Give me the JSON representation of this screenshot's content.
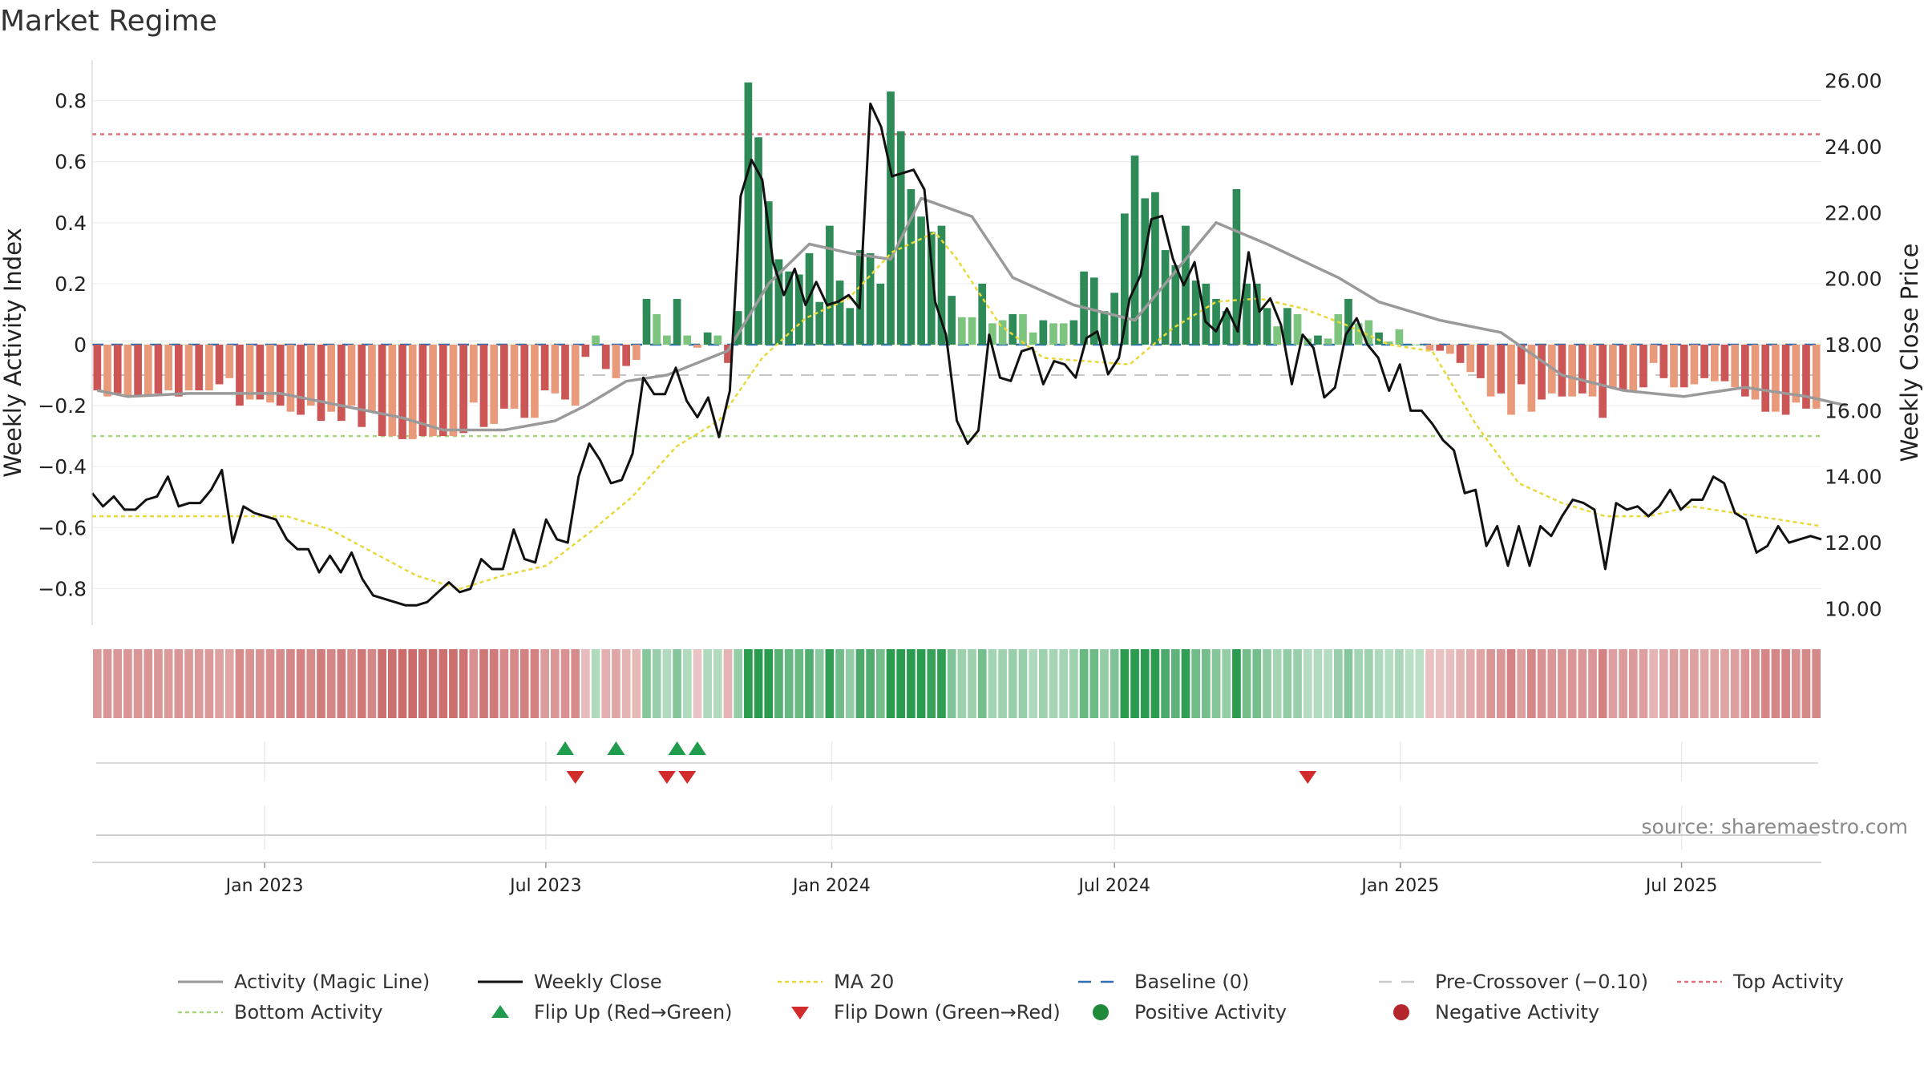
{
  "chart_data": {
    "type": "bar",
    "title": "Market Regime",
    "ylabel_left": "Weekly Activity Index",
    "ylabel_right": "Weekly Close Price",
    "source": "source: sharemaestro.com",
    "x_range": [
      "2022-09-12",
      "2025-09-29"
    ],
    "ylim_left": [
      -0.92,
      0.92
    ],
    "ylim_right": [
      9.5,
      26.5
    ],
    "yticks_left": [
      {
        "v": 0.8,
        "label": "0.8"
      },
      {
        "v": 0.6,
        "label": "0.6"
      },
      {
        "v": 0.4,
        "label": "0.4"
      },
      {
        "v": 0.2,
        "label": "0.2"
      },
      {
        "v": 0,
        "label": "0"
      },
      {
        "v": -0.2,
        "label": "−0.2"
      },
      {
        "v": -0.4,
        "label": "−0.4"
      },
      {
        "v": -0.6,
        "label": "−0.6"
      },
      {
        "v": -0.8,
        "label": "−0.8"
      }
    ],
    "yticks_right": [
      {
        "v": 26,
        "label": "26.00"
      },
      {
        "v": 24,
        "label": "24.00"
      },
      {
        "v": 22,
        "label": "22.00"
      },
      {
        "v": 20,
        "label": "20.00"
      },
      {
        "v": 18,
        "label": "18.00"
      },
      {
        "v": 16,
        "label": "16.00"
      },
      {
        "v": 14,
        "label": "14.00"
      },
      {
        "v": 12,
        "label": "12.00"
      },
      {
        "v": 10,
        "label": "10.00"
      }
    ],
    "xticks": [
      {
        "date": "2023-01-01",
        "label": "Jan 2023"
      },
      {
        "date": "2023-07-01",
        "label": "Jul 2023"
      },
      {
        "date": "2024-01-01",
        "label": "Jan 2024"
      },
      {
        "date": "2024-07-01",
        "label": "Jul 2024"
      },
      {
        "date": "2025-01-01",
        "label": "Jan 2025"
      },
      {
        "date": "2025-07-01",
        "label": "Jul 2025"
      }
    ],
    "reference_lines": {
      "top_activity": 0.69,
      "bottom_activity": -0.3,
      "pre_crossover": -0.1,
      "baseline": 0
    },
    "activity_bars": [
      -0.15,
      -0.17,
      -0.16,
      -0.17,
      -0.17,
      -0.17,
      -0.16,
      -0.15,
      -0.17,
      -0.15,
      -0.15,
      -0.15,
      -0.13,
      -0.11,
      -0.2,
      -0.18,
      -0.18,
      -0.19,
      -0.2,
      -0.22,
      -0.23,
      -0.2,
      -0.25,
      -0.22,
      -0.25,
      -0.2,
      -0.27,
      -0.22,
      -0.3,
      -0.3,
      -0.31,
      -0.31,
      -0.3,
      -0.3,
      -0.3,
      -0.3,
      -0.29,
      -0.19,
      -0.27,
      -0.26,
      -0.21,
      -0.21,
      -0.24,
      -0.24,
      -0.15,
      -0.16,
      -0.18,
      -0.2,
      -0.04,
      0.03,
      -0.08,
      -0.11,
      -0.07,
      -0.05,
      0.15,
      0.1,
      0.03,
      0.15,
      0.03,
      -0.01,
      0.04,
      0.03,
      -0.06,
      0.11,
      0.86,
      0.68,
      0.47,
      0.28,
      0.24,
      0.23,
      0.3,
      0.14,
      0.39,
      0.21,
      0.12,
      0.31,
      0.3,
      0.2,
      0.83,
      0.7,
      0.51,
      0.42,
      0.37,
      0.39,
      0.16,
      0.09,
      0.09,
      0.2,
      0.07,
      0.08,
      0.1,
      0.1,
      0.04,
      0.08,
      0.07,
      0.07,
      0.08,
      0.24,
      0.22,
      0.11,
      0.17,
      0.43,
      0.62,
      0.48,
      0.5,
      0.31,
      0.26,
      0.39,
      0.21,
      0.2,
      0.15,
      0.11,
      0.51,
      0.2,
      0.2,
      0.12,
      0.06,
      0.12,
      0.1,
      0.02,
      0.03,
      0.02,
      0.1,
      0.15,
      0.07,
      0.08,
      0.04,
      0.01,
      0.05,
      0.0,
      0.0,
      -0.02,
      -0.02,
      -0.03,
      -0.06,
      -0.09,
      -0.11,
      -0.17,
      -0.16,
      -0.23,
      -0.13,
      -0.22,
      -0.18,
      -0.16,
      -0.17,
      -0.17,
      -0.16,
      -0.17,
      -0.24,
      -0.14,
      -0.15,
      -0.15,
      -0.14,
      -0.06,
      -0.11,
      -0.14,
      -0.14,
      -0.13,
      -0.11,
      -0.12,
      -0.12,
      -0.14,
      -0.17,
      -0.18,
      -0.22,
      -0.22,
      -0.23,
      -0.19,
      -0.21,
      -0.21
    ],
    "magic_line": [
      [
        0,
        -0.15
      ],
      [
        3,
        -0.17
      ],
      [
        9,
        -0.16
      ],
      [
        18,
        -0.16
      ],
      [
        24,
        -0.2
      ],
      [
        30,
        -0.24
      ],
      [
        34,
        -0.28
      ],
      [
        40,
        -0.28
      ],
      [
        45,
        -0.25
      ],
      [
        48,
        -0.2
      ],
      [
        52,
        -0.12
      ],
      [
        56,
        -0.1
      ],
      [
        62,
        -0.02
      ],
      [
        66,
        0.2
      ],
      [
        70,
        0.33
      ],
      [
        74,
        0.3
      ],
      [
        78,
        0.28
      ],
      [
        81,
        0.48
      ],
      [
        86,
        0.42
      ],
      [
        90,
        0.22
      ],
      [
        96,
        0.13
      ],
      [
        102,
        0.08
      ],
      [
        105,
        0.2
      ],
      [
        110,
        0.4
      ],
      [
        115,
        0.33
      ],
      [
        122,
        0.22
      ],
      [
        126,
        0.14
      ],
      [
        132,
        0.08
      ],
      [
        138,
        0.04
      ],
      [
        144,
        -0.1
      ],
      [
        150,
        -0.15
      ],
      [
        156,
        -0.17
      ],
      [
        162,
        -0.14
      ],
      [
        168,
        -0.17
      ],
      [
        172,
        -0.2
      ]
    ],
    "weekly_close": [
      [
        0,
        13.5
      ],
      [
        1,
        13.1
      ],
      [
        2,
        13.4
      ],
      [
        3,
        13.0
      ],
      [
        4,
        13.0
      ],
      [
        5,
        13.3
      ],
      [
        6,
        13.4
      ],
      [
        7,
        14.0
      ],
      [
        8,
        13.1
      ],
      [
        9,
        13.2
      ],
      [
        10,
        13.2
      ],
      [
        11,
        13.6
      ],
      [
        12,
        14.2
      ],
      [
        13,
        12.0
      ],
      [
        14,
        13.1
      ],
      [
        15,
        12.9
      ],
      [
        16,
        12.8
      ],
      [
        17,
        12.7
      ],
      [
        18,
        12.1
      ],
      [
        19,
        11.8
      ],
      [
        20,
        11.8
      ],
      [
        21,
        11.1
      ],
      [
        22,
        11.6
      ],
      [
        23,
        11.1
      ],
      [
        24,
        11.7
      ],
      [
        25,
        10.9
      ],
      [
        26,
        10.4
      ],
      [
        27,
        10.3
      ],
      [
        28,
        10.2
      ],
      [
        29,
        10.1
      ],
      [
        30,
        10.1
      ],
      [
        31,
        10.2
      ],
      [
        32,
        10.5
      ],
      [
        33,
        10.8
      ],
      [
        34,
        10.5
      ],
      [
        35,
        10.6
      ],
      [
        36,
        11.5
      ],
      [
        37,
        11.2
      ],
      [
        38,
        11.2
      ],
      [
        39,
        12.4
      ],
      [
        40,
        11.5
      ],
      [
        41,
        11.4
      ],
      [
        42,
        12.7
      ],
      [
        43,
        12.1
      ],
      [
        44,
        12.0
      ],
      [
        45,
        14.0
      ],
      [
        46,
        15.0
      ],
      [
        47,
        14.5
      ],
      [
        48,
        13.8
      ],
      [
        49,
        13.9
      ],
      [
        50,
        14.7
      ],
      [
        51,
        17.0
      ],
      [
        52,
        16.5
      ],
      [
        53,
        16.5
      ],
      [
        54,
        17.3
      ],
      [
        55,
        16.3
      ],
      [
        56,
        15.8
      ],
      [
        57,
        16.4
      ],
      [
        58,
        15.2
      ],
      [
        59,
        16.6
      ],
      [
        60,
        22.5
      ],
      [
        61,
        23.6
      ],
      [
        62,
        23.0
      ],
      [
        63,
        20.5
      ],
      [
        64,
        19.5
      ],
      [
        65,
        20.3
      ],
      [
        66,
        19.2
      ],
      [
        67,
        19.9
      ],
      [
        68,
        19.2
      ],
      [
        69,
        19.3
      ],
      [
        70,
        19.5
      ],
      [
        71,
        19.1
      ],
      [
        72,
        25.3
      ],
      [
        73,
        24.6
      ],
      [
        74,
        23.1
      ],
      [
        75,
        23.2
      ],
      [
        76,
        23.3
      ],
      [
        77,
        22.7
      ],
      [
        78,
        19.3
      ],
      [
        79,
        18.3
      ],
      [
        80,
        15.7
      ],
      [
        81,
        15.0
      ],
      [
        82,
        15.4
      ],
      [
        83,
        18.3
      ],
      [
        84,
        17.0
      ],
      [
        85,
        16.9
      ],
      [
        86,
        17.8
      ],
      [
        87,
        17.9
      ],
      [
        88,
        16.8
      ],
      [
        89,
        17.5
      ],
      [
        90,
        17.4
      ],
      [
        91,
        17.0
      ],
      [
        92,
        18.2
      ],
      [
        93,
        18.4
      ],
      [
        94,
        17.1
      ],
      [
        95,
        17.6
      ],
      [
        96,
        19.4
      ],
      [
        97,
        20.1
      ],
      [
        98,
        21.8
      ],
      [
        99,
        21.9
      ],
      [
        100,
        20.6
      ],
      [
        101,
        19.8
      ],
      [
        102,
        20.5
      ],
      [
        103,
        18.7
      ],
      [
        104,
        18.4
      ],
      [
        105,
        19.1
      ],
      [
        106,
        18.4
      ],
      [
        107,
        20.8
      ],
      [
        108,
        19.0
      ],
      [
        109,
        19.4
      ],
      [
        110,
        18.6
      ],
      [
        111,
        16.8
      ],
      [
        112,
        18.3
      ],
      [
        113,
        17.9
      ],
      [
        114,
        16.4
      ],
      [
        115,
        16.7
      ],
      [
        116,
        18.3
      ],
      [
        117,
        18.8
      ],
      [
        118,
        18.0
      ],
      [
        119,
        17.6
      ],
      [
        120,
        16.6
      ],
      [
        121,
        17.4
      ],
      [
        122,
        16.0
      ],
      [
        123,
        16.0
      ],
      [
        124,
        15.6
      ],
      [
        125,
        15.1
      ],
      [
        126,
        14.8
      ],
      [
        127,
        13.5
      ],
      [
        128,
        13.6
      ],
      [
        129,
        11.9
      ],
      [
        130,
        12.5
      ],
      [
        131,
        11.3
      ],
      [
        132,
        12.5
      ],
      [
        133,
        11.3
      ],
      [
        134,
        12.5
      ],
      [
        135,
        12.2
      ],
      [
        136,
        12.8
      ],
      [
        137,
        13.3
      ],
      [
        138,
        13.2
      ],
      [
        139,
        13.0
      ],
      [
        140,
        11.2
      ],
      [
        141,
        13.2
      ],
      [
        142,
        13.0
      ],
      [
        143,
        13.1
      ],
      [
        144,
        12.8
      ],
      [
        145,
        13.1
      ],
      [
        146,
        13.6
      ],
      [
        147,
        13.0
      ],
      [
        148,
        13.3
      ],
      [
        149,
        13.3
      ],
      [
        150,
        14.0
      ],
      [
        151,
        13.8
      ],
      [
        152,
        12.9
      ],
      [
        153,
        12.7
      ],
      [
        154,
        11.7
      ],
      [
        155,
        11.9
      ],
      [
        156,
        12.5
      ],
      [
        157,
        12.0
      ],
      [
        158,
        12.1
      ],
      [
        159,
        12.2
      ],
      [
        160,
        12.1
      ]
    ],
    "ma20": [
      [
        0,
        12.8
      ],
      [
        8,
        12.8
      ],
      [
        18,
        12.8
      ],
      [
        22,
        12.4
      ],
      [
        26,
        11.7
      ],
      [
        30,
        11.0
      ],
      [
        34,
        10.6
      ],
      [
        38,
        11.0
      ],
      [
        42,
        11.3
      ],
      [
        46,
        12.3
      ],
      [
        50,
        13.4
      ],
      [
        54,
        14.9
      ],
      [
        58,
        15.7
      ],
      [
        62,
        17.6
      ],
      [
        66,
        18.8
      ],
      [
        70,
        19.4
      ],
      [
        74,
        20.8
      ],
      [
        78,
        21.4
      ],
      [
        80,
        20.6
      ],
      [
        84,
        18.6
      ],
      [
        88,
        17.6
      ],
      [
        92,
        17.5
      ],
      [
        96,
        17.4
      ],
      [
        100,
        18.5
      ],
      [
        104,
        19.3
      ],
      [
        108,
        19.4
      ],
      [
        112,
        19.1
      ],
      [
        116,
        18.6
      ],
      [
        120,
        18.0
      ],
      [
        124,
        17.8
      ],
      [
        128,
        15.6
      ],
      [
        132,
        13.8
      ],
      [
        136,
        13.2
      ],
      [
        140,
        12.8
      ],
      [
        144,
        12.8
      ],
      [
        148,
        13.1
      ],
      [
        152,
        12.9
      ],
      [
        156,
        12.7
      ],
      [
        160,
        12.5
      ]
    ],
    "flip_up_x": [
      46,
      51,
      57,
      59
    ],
    "flip_down_x": [
      47,
      56,
      58,
      119
    ],
    "legend": [
      {
        "label": "Activity (Magic Line)",
        "kind": "line",
        "color": "#999999"
      },
      {
        "label": "Weekly Close",
        "kind": "line",
        "color": "#111111"
      },
      {
        "label": "MA 20",
        "kind": "dotted",
        "color": "#e8d83a"
      },
      {
        "label": "Baseline (0)",
        "kind": "dashed",
        "color": "#2f6fb4"
      },
      {
        "label": "Pre-Crossover (−0.10)",
        "kind": "dashed",
        "color": "#c8c8c8"
      },
      {
        "label": "Top Activity",
        "kind": "dotted",
        "color": "#e0707a"
      },
      {
        "label": "Bottom Activity",
        "kind": "dotted",
        "color": "#a9d67c"
      },
      {
        "label": "Flip Up (Red→Green)",
        "kind": "tri-up",
        "color": "#1f9d4c"
      },
      {
        "label": "Flip Down (Green→Red)",
        "kind": "tri-down",
        "color": "#d22b2b"
      },
      {
        "label": "Positive Activity",
        "kind": "dot",
        "color": "#1f8a3a"
      },
      {
        "label": "Negative Activity",
        "kind": "dot",
        "color": "#b3262b"
      }
    ],
    "colors": {
      "pos_dark": "#2e8b57",
      "pos_light": "#7dc47f",
      "neg_dark": "#cc5555",
      "neg_light": "#e99a7a",
      "grid": "#ececec",
      "axis": "#cccccc"
    }
  }
}
